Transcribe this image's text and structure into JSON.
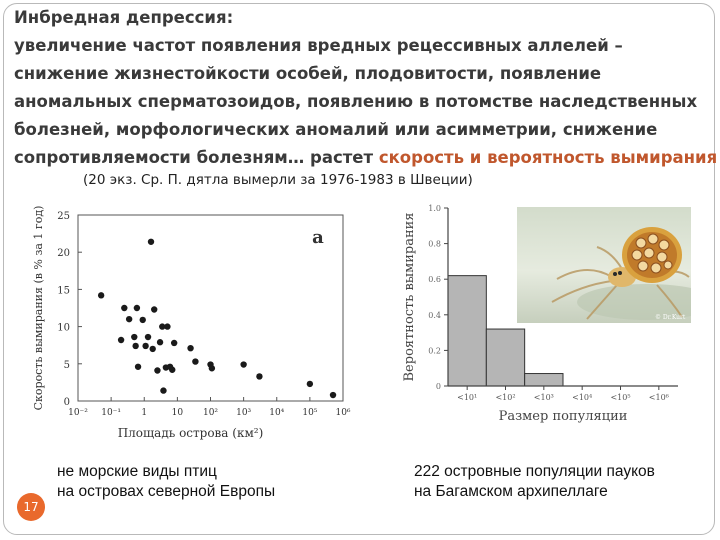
{
  "heading": {
    "line1": "Инбредная депрессия:",
    "line2": "увеличение частот появления вредных рецессивных аллелей –",
    "line3": "снижение жизнестойкости особей, плодовитости, появление",
    "line4": "аномальных сперматозоидов, появлению в потомстве наследственных",
    "line5": "болезней, морфологических аномалий или асимметрии, снижение",
    "line6_plain": "сопротивляемости болезням… растет ",
    "line6_highlight": "скорость и вероятность вымирания"
  },
  "note": "(20 экз. Ср. П. дятла вымерли за 1976-1983 в Швеции)",
  "captions": {
    "left_line1": "не морские виды птиц",
    "left_line2": "на островах северной Европы",
    "right_line1": "222 островные популяции пауков",
    "right_line2": "на Багамском архипеллаге"
  },
  "page_number": "17",
  "colors": {
    "highlight": "#c0572d",
    "badge": "#e9692c",
    "bar_fill": "#b5b5b5"
  },
  "photo_credit": "© Dr.Kurt",
  "chart_data": [
    {
      "type": "scatter",
      "panel_label": "a",
      "xlabel": "Площадь острова (км²)",
      "ylabel": "Скорость вымирания (в % за 1 год)",
      "x_scale": "log",
      "xlim": [
        0.01,
        1000000
      ],
      "ylim": [
        0,
        25
      ],
      "x_ticks": [
        0.01,
        0.1,
        1,
        10,
        100,
        1000,
        10000,
        100000,
        1000000
      ],
      "x_tick_labels": [
        "10⁻²",
        "10⁻¹",
        "1",
        "10",
        "10²",
        "10³",
        "10⁴",
        "10⁵",
        "10⁶"
      ],
      "y_ticks": [
        0,
        5,
        10,
        15,
        20,
        25
      ],
      "points": [
        {
          "x": 0.05,
          "y": 14.2
        },
        {
          "x": 0.2,
          "y": 8.2
        },
        {
          "x": 0.25,
          "y": 12.5
        },
        {
          "x": 0.35,
          "y": 11
        },
        {
          "x": 0.5,
          "y": 8.6
        },
        {
          "x": 0.55,
          "y": 7.4
        },
        {
          "x": 0.6,
          "y": 12.5
        },
        {
          "x": 0.65,
          "y": 4.6
        },
        {
          "x": 0.9,
          "y": 10.9
        },
        {
          "x": 1.1,
          "y": 7.4
        },
        {
          "x": 1.3,
          "y": 8.6
        },
        {
          "x": 1.6,
          "y": 21.4
        },
        {
          "x": 1.8,
          "y": 7.0
        },
        {
          "x": 2.0,
          "y": 12.3
        },
        {
          "x": 2.5,
          "y": 4.1
        },
        {
          "x": 3.0,
          "y": 7.9
        },
        {
          "x": 3.5,
          "y": 10.0
        },
        {
          "x": 3.8,
          "y": 1.4
        },
        {
          "x": 4.5,
          "y": 4.5
        },
        {
          "x": 5.0,
          "y": 10.0
        },
        {
          "x": 6.0,
          "y": 4.6
        },
        {
          "x": 7.0,
          "y": 4.2
        },
        {
          "x": 8.0,
          "y": 7.8
        },
        {
          "x": 25,
          "y": 7.1
        },
        {
          "x": 35,
          "y": 5.3
        },
        {
          "x": 100,
          "y": 4.9
        },
        {
          "x": 110,
          "y": 4.4
        },
        {
          "x": 1000,
          "y": 4.9
        },
        {
          "x": 3000,
          "y": 3.3
        },
        {
          "x": 100000,
          "y": 2.3
        },
        {
          "x": 500000,
          "y": 0.8
        }
      ]
    },
    {
      "type": "bar",
      "xlabel": "Размер популяции",
      "ylabel": "Вероятность вымирания",
      "ylim": [
        0,
        1.0
      ],
      "y_ticks": [
        0,
        0.2,
        0.4,
        0.6,
        0.8,
        1.0
      ],
      "y_tick_labels": [
        "0",
        "0.2",
        "0.4",
        "0.6",
        "0.8",
        "1.0"
      ],
      "categories": [
        "<10¹",
        "<10²",
        "<10³",
        "<10⁴",
        "<10⁵",
        "<10⁶"
      ],
      "values": [
        0.62,
        0.32,
        0.07,
        0,
        0,
        0
      ]
    }
  ]
}
